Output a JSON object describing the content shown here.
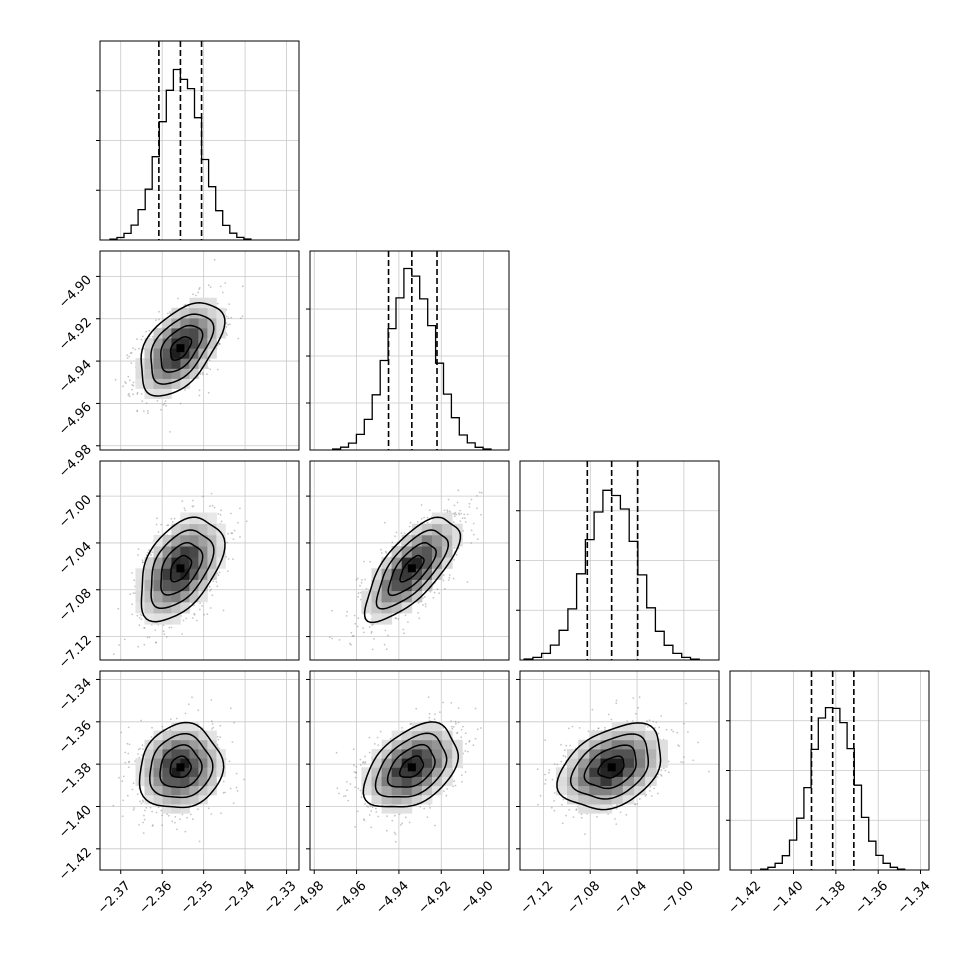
{
  "chart_data": {
    "type": "corner",
    "parameters": [
      {
        "range": [
          -2.375,
          -2.327
        ],
        "ticks": [
          -2.37,
          -2.36,
          -2.35,
          -2.34,
          -2.33
        ],
        "tick_labels": [
          "−2.37",
          "−2.36",
          "−2.35",
          "−2.34",
          "−2.33"
        ],
        "quantiles": [
          -2.3608,
          -2.3556,
          -2.3505
        ],
        "center": -2.3556,
        "sigma": 0.005,
        "hist_max": 0.85
      },
      {
        "range": [
          -4.982,
          -4.888
        ],
        "ticks": [
          -4.98,
          -4.96,
          -4.94,
          -4.92,
          -4.9
        ],
        "tick_labels": [
          "−4.98",
          "−4.96",
          "−4.94",
          "−4.92",
          "−4.90"
        ],
        "quantiles": [
          -4.9449,
          -4.9339,
          -4.922
        ],
        "center": -4.9339,
        "sigma": 0.011,
        "hist_max": 0.9
      },
      {
        "range": [
          -7.14,
          -6.97
        ],
        "ticks": [
          -7.12,
          -7.08,
          -7.04,
          -7.0
        ],
        "tick_labels": [
          "−7.12",
          "−7.08",
          "−7.04",
          "−7.00"
        ],
        "quantiles": [
          -7.0825,
          -7.0617,
          -7.0395
        ],
        "center": -7.0617,
        "sigma": 0.022,
        "hist_max": 0.85
      },
      {
        "range": [
          -1.43,
          -1.336
        ],
        "ticks": [
          -1.42,
          -1.4,
          -1.38,
          -1.36,
          -1.34
        ],
        "tick_labels": [
          "−1.42",
          "−1.40",
          "−1.38",
          "−1.36",
          "−1.34"
        ],
        "quantiles": [
          -1.3915,
          -1.3815,
          -1.3715
        ],
        "center": -1.3815,
        "sigma": 0.01,
        "hist_max": 0.85
      }
    ],
    "correlations": [
      [
        1,
        0.5,
        0.45,
        0.1
      ],
      [
        0.5,
        1,
        0.7,
        0.4
      ],
      [
        0.45,
        0.7,
        1,
        0.35
      ],
      [
        0.1,
        0.4,
        0.35,
        1
      ]
    ],
    "contour_levels_sigma": [
      0.5,
      1.0,
      1.5,
      2.0
    ],
    "quantile_levels": [
      0.16,
      0.5,
      0.84
    ],
    "grid": true,
    "color": "#000000",
    "scatter_color": "#808080"
  }
}
